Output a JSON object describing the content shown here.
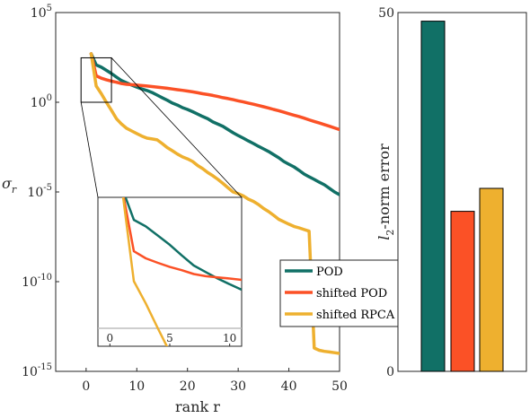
{
  "chart_data": [
    {
      "type": "line",
      "title": "",
      "xlabel": "rank r",
      "ylabel_base": "σ",
      "ylabel_sub": "r",
      "yscale": "log",
      "xlim": [
        -6,
        50
      ],
      "ylim": [
        1e-15,
        100000
      ],
      "xticks": [
        0,
        10,
        20,
        30,
        40,
        50
      ],
      "xtick_labels": [
        "0",
        "10",
        "20",
        "30",
        "40",
        "50"
      ],
      "yticks": [
        1e-15,
        1e-10,
        1e-05,
        1,
        100000
      ],
      "ytick_labels": [
        {
          "base": "10",
          "exp": "-15"
        },
        {
          "base": "10",
          "exp": "-10"
        },
        {
          "base": "10",
          "exp": "-5"
        },
        {
          "base": "10",
          "exp": "0"
        },
        {
          "base": "10",
          "exp": "5"
        }
      ],
      "legend": {
        "position": "right-inside",
        "entries": [
          "POD",
          "shifted POD",
          "shifted RPCA"
        ]
      },
      "series": [
        {
          "name": "POD",
          "color": "#117066",
          "x": [
            1,
            2,
            3,
            4,
            5,
            6,
            7,
            8,
            9,
            10,
            11,
            12,
            13,
            14,
            15,
            16,
            17,
            18,
            19,
            20,
            21,
            22,
            23,
            24,
            25,
            26,
            27,
            28,
            29,
            30,
            31,
            32,
            33,
            34,
            35,
            36,
            37,
            38,
            39,
            40,
            41,
            42,
            43,
            44,
            45,
            46,
            47,
            48,
            49,
            50
          ],
          "y": [
            500,
            120,
            90,
            60,
            40,
            25,
            16,
            12,
            9,
            7,
            5.5,
            4.5,
            3.5,
            2.5,
            1.8,
            1.3,
            0.9,
            0.7,
            0.5,
            0.4,
            0.3,
            0.22,
            0.16,
            0.12,
            0.08,
            0.06,
            0.045,
            0.03,
            0.02,
            0.014,
            0.01,
            0.007,
            0.005,
            0.0035,
            0.0025,
            0.0018,
            0.0012,
            0.0008,
            0.0005,
            0.00035,
            0.00025,
            0.00016,
            0.0001,
            7e-05,
            5e-05,
            3.5e-05,
            2.5e-05,
            1.6e-05,
            1e-05,
            7e-06
          ]
        },
        {
          "name": "shifted POD",
          "color": "#fb5126",
          "x": [
            1,
            2,
            3,
            4,
            5,
            6,
            7,
            8,
            9,
            10,
            11,
            12,
            13,
            14,
            15,
            16,
            17,
            18,
            19,
            20,
            21,
            22,
            23,
            24,
            25,
            26,
            27,
            28,
            29,
            30,
            31,
            32,
            33,
            34,
            35,
            36,
            37,
            38,
            39,
            40,
            41,
            42,
            43,
            44,
            45,
            46,
            47,
            48,
            49,
            50
          ],
          "y": [
            500,
            30,
            22,
            18,
            15,
            13,
            11,
            10,
            9.5,
            9,
            8.5,
            8,
            7.5,
            7,
            6.5,
            6,
            5.5,
            5,
            4.6,
            4.2,
            3.8,
            3.4,
            3,
            2.7,
            2.4,
            2.1,
            1.8,
            1.6,
            1.4,
            1.2,
            1.05,
            0.9,
            0.78,
            0.66,
            0.56,
            0.48,
            0.4,
            0.34,
            0.28,
            0.23,
            0.19,
            0.16,
            0.13,
            0.105,
            0.085,
            0.07,
            0.057,
            0.046,
            0.037,
            0.03
          ]
        },
        {
          "name": "shifted RPCA",
          "color": "#eeb02f",
          "x": [
            1,
            2,
            3,
            4,
            5,
            6,
            7,
            8,
            9,
            10,
            11,
            12,
            13,
            14,
            15,
            16,
            17,
            18,
            19,
            20,
            21,
            22,
            23,
            24,
            25,
            26,
            27,
            28,
            29,
            30,
            31,
            32,
            33,
            34,
            35,
            36,
            37,
            38,
            39,
            40,
            41,
            42,
            43,
            44,
            45,
            46,
            47,
            48,
            49,
            50
          ],
          "y": [
            500,
            8,
            3,
            1,
            0.35,
            0.12,
            0.06,
            0.035,
            0.025,
            0.018,
            0.013,
            0.01,
            0.009,
            0.008,
            0.005,
            0.003,
            0.002,
            0.0013,
            0.0009,
            0.0007,
            0.0005,
            0.0003,
            0.0002,
            0.00012,
            8e-05,
            5e-05,
            3e-05,
            1.7e-05,
            1e-05,
            8e-06,
            6e-06,
            4e-06,
            3e-06,
            2e-06,
            1.2e-06,
            8e-07,
            5e-07,
            3e-07,
            2.2e-07,
            1.6e-07,
            1.2e-07,
            1e-07,
            8e-08,
            6.5e-08,
            2e-14,
            1.5e-14,
            1.3e-14,
            1.2e-14,
            1.1e-14,
            1e-14
          ]
        }
      ],
      "inset": {
        "xlim": [
          -1,
          11
        ],
        "xticks": [
          0,
          5,
          10
        ],
        "xtick_labels": [
          "0",
          "5",
          "10"
        ],
        "zoom_x": [
          -1,
          5
        ],
        "zoom_y": [
          1,
          300
        ]
      }
    },
    {
      "type": "bar",
      "title": "",
      "xlabel": "",
      "ylabel_base": "l",
      "ylabel_sub": "2",
      "ylabel_rest": "-norm error",
      "ylim": [
        0,
        50
      ],
      "yticks": [
        0,
        50
      ],
      "ytick_labels": [
        "0",
        "50"
      ],
      "categories": [
        "POD",
        "shifted POD",
        "shifted RPCA"
      ],
      "values": [
        48.8,
        22.3,
        25.5
      ],
      "colors": [
        "#117066",
        "#fb5126",
        "#eeb02f"
      ]
    }
  ]
}
